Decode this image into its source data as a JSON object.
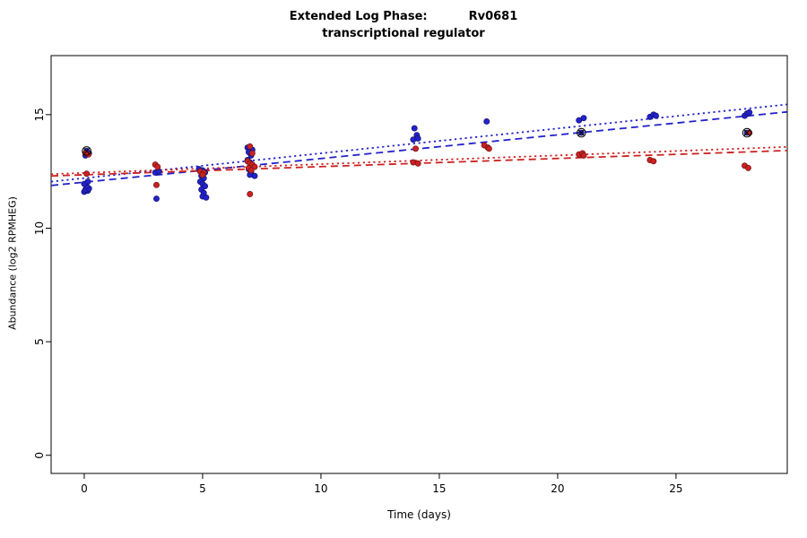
{
  "header": {
    "title_left": "Extended Log Phase:",
    "title_right": "Rv0681",
    "subtitle": "transcriptional regulator"
  },
  "chart_data": {
    "type": "scatter",
    "title": "Extended Log Phase:     Rv0681",
    "subtitle": "transcriptional regulator",
    "xlabel": "Time  (days)",
    "ylabel": "Abundance  (log2 RPMHEG)",
    "xlim": [
      -1.4,
      29.7
    ],
    "ylim": [
      -0.8,
      17.6
    ],
    "xticks": [
      0,
      5,
      10,
      15,
      20,
      25
    ],
    "yticks": [
      0,
      5,
      10,
      15
    ],
    "grid": false,
    "legend": "none",
    "series": [
      {
        "name": "blue-series",
        "color": "#2222cc",
        "stroke": "#12126e",
        "points": [
          [
            0.0,
            11.6
          ],
          [
            0.15,
            11.65
          ],
          [
            0.05,
            11.7
          ],
          [
            0.2,
            11.75
          ],
          [
            0.1,
            11.85
          ],
          [
            0.0,
            11.95
          ],
          [
            0.15,
            12.05
          ],
          [
            0.05,
            13.2
          ],
          [
            0.2,
            13.3
          ],
          [
            0.1,
            13.4
          ],
          [
            3.0,
            12.45
          ],
          [
            3.15,
            12.5
          ],
          [
            3.05,
            11.3
          ],
          [
            4.85,
            12.6
          ],
          [
            5.0,
            12.55
          ],
          [
            5.1,
            12.45
          ],
          [
            4.95,
            12.3
          ],
          [
            5.05,
            12.2
          ],
          [
            4.9,
            12.05
          ],
          [
            5.0,
            11.95
          ],
          [
            5.1,
            11.85
          ],
          [
            4.95,
            11.7
          ],
          [
            5.05,
            11.55
          ],
          [
            5.0,
            11.4
          ],
          [
            5.15,
            11.35
          ],
          [
            6.9,
            13.55
          ],
          [
            7.0,
            13.5
          ],
          [
            7.1,
            13.45
          ],
          [
            6.95,
            13.35
          ],
          [
            7.05,
            13.2
          ],
          [
            6.9,
            13.0
          ],
          [
            7.0,
            12.9
          ],
          [
            7.1,
            12.8
          ],
          [
            7.15,
            12.7
          ],
          [
            6.95,
            12.6
          ],
          [
            7.05,
            12.5
          ],
          [
            7.0,
            12.35
          ],
          [
            7.2,
            12.3
          ],
          [
            13.95,
            14.4
          ],
          [
            14.05,
            14.1
          ],
          [
            14.1,
            13.95
          ],
          [
            13.9,
            13.9
          ],
          [
            17.0,
            14.7
          ],
          [
            20.9,
            14.75
          ],
          [
            21.1,
            14.85
          ],
          [
            21.0,
            14.2
          ],
          [
            23.9,
            14.9
          ],
          [
            24.05,
            15.0
          ],
          [
            24.15,
            14.95
          ],
          [
            27.9,
            14.95
          ],
          [
            28.0,
            15.05
          ],
          [
            28.1,
            15.1
          ],
          [
            28.0,
            14.2
          ]
        ]
      },
      {
        "name": "red-series",
        "color": "#cc2222",
        "stroke": "#6e1212",
        "points": [
          [
            0.05,
            13.3
          ],
          [
            0.18,
            13.25
          ],
          [
            0.1,
            12.4
          ],
          [
            3.0,
            12.8
          ],
          [
            3.1,
            12.7
          ],
          [
            3.05,
            11.9
          ],
          [
            4.9,
            12.5
          ],
          [
            5.05,
            12.45
          ],
          [
            5.0,
            12.35
          ],
          [
            7.0,
            13.6
          ],
          [
            7.1,
            13.3
          ],
          [
            6.9,
            12.95
          ],
          [
            7.0,
            12.85
          ],
          [
            7.1,
            12.8
          ],
          [
            7.2,
            12.7
          ],
          [
            6.95,
            12.65
          ],
          [
            7.05,
            12.55
          ],
          [
            7.0,
            11.5
          ],
          [
            14.0,
            13.5
          ],
          [
            13.9,
            12.9
          ],
          [
            14.1,
            12.85
          ],
          [
            16.9,
            13.65
          ],
          [
            17.05,
            13.55
          ],
          [
            17.1,
            13.5
          ],
          [
            20.9,
            13.25
          ],
          [
            21.05,
            13.3
          ],
          [
            21.1,
            13.2
          ],
          [
            23.9,
            13.0
          ],
          [
            24.05,
            12.95
          ],
          [
            27.9,
            12.75
          ],
          [
            28.05,
            12.65
          ],
          [
            28.1,
            14.2
          ]
        ]
      }
    ],
    "trend_lines": [
      {
        "name": "blue-trend-dashed",
        "color": "#2222cc",
        "style": "dashed",
        "x": [
          -1.4,
          29.7
        ],
        "y": [
          11.88,
          15.12
        ]
      },
      {
        "name": "blue-trend-dotted",
        "color": "#2222cc",
        "style": "dotted",
        "x": [
          -1.4,
          29.7
        ],
        "y": [
          12.05,
          15.45
        ]
      },
      {
        "name": "red-trend-dashed",
        "color": "#cc2222",
        "style": "dashed",
        "x": [
          -1.4,
          29.7
        ],
        "y": [
          12.3,
          13.42
        ]
      },
      {
        "name": "red-trend-dotted",
        "color": "#cc2222",
        "style": "dotted",
        "x": [
          -1.4,
          29.7
        ],
        "y": [
          12.38,
          13.58
        ]
      }
    ],
    "outlined_points": [
      [
        0.1,
        13.4
      ],
      [
        21.0,
        14.2
      ],
      [
        28.0,
        14.2
      ]
    ]
  }
}
